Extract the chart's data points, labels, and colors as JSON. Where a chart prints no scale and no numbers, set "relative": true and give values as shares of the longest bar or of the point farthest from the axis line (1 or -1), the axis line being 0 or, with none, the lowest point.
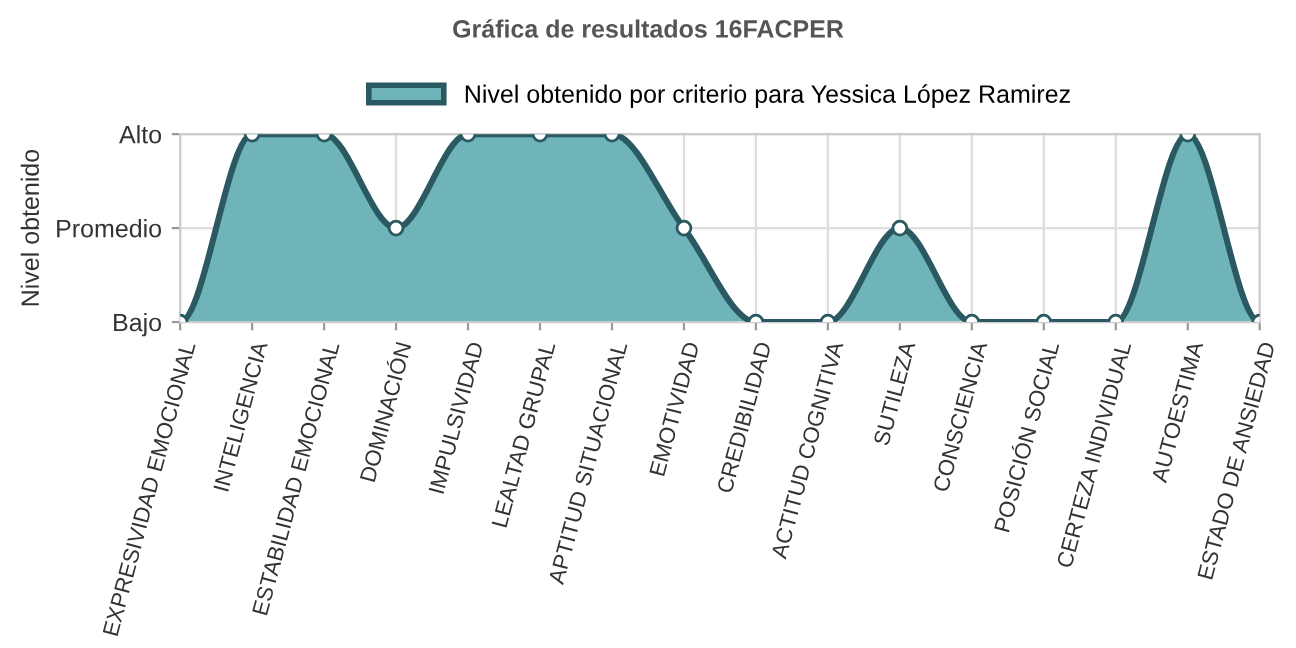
{
  "chart_data": {
    "type": "area",
    "title": "Gráfica de resultados 16FACPER",
    "ylabel": "Nivel obtenido",
    "categories": [
      "EXPRESIVIDAD EMOCIONAL",
      "INTELIGENCIA",
      "ESTABILIDAD EMOCIONAL",
      "DOMINACIÓN",
      "IMPULSIVIDAD",
      "LEALTAD GRUPAL",
      "APTITUD SITUACIONAL",
      "EMOTIVIDAD",
      "CREDIBILIDAD",
      "ACTITUD COGNITIVA",
      "SUTILEZA",
      "CONSCIENCIA",
      "POSICIÓN SOCIAL",
      "CERTEZA INDIVIDUAL",
      "AUTOESTIMA",
      "ESTADO DE ANSIEDAD"
    ],
    "series": [
      {
        "name": "Nivel obtenido por criterio para Yessica López Ramirez",
        "color": "#6fb4b8",
        "values": [
          0,
          1,
          1,
          0.5,
          1,
          1,
          1,
          0.5,
          0,
          0,
          0.5,
          0,
          0,
          0,
          1,
          0
        ]
      }
    ],
    "relative": true,
    "y_categories": [
      "Alto",
      "Promedio",
      "Bajo"
    ],
    "grid": true,
    "legend": "top",
    "marker": "circle",
    "line_style": "solid"
  }
}
